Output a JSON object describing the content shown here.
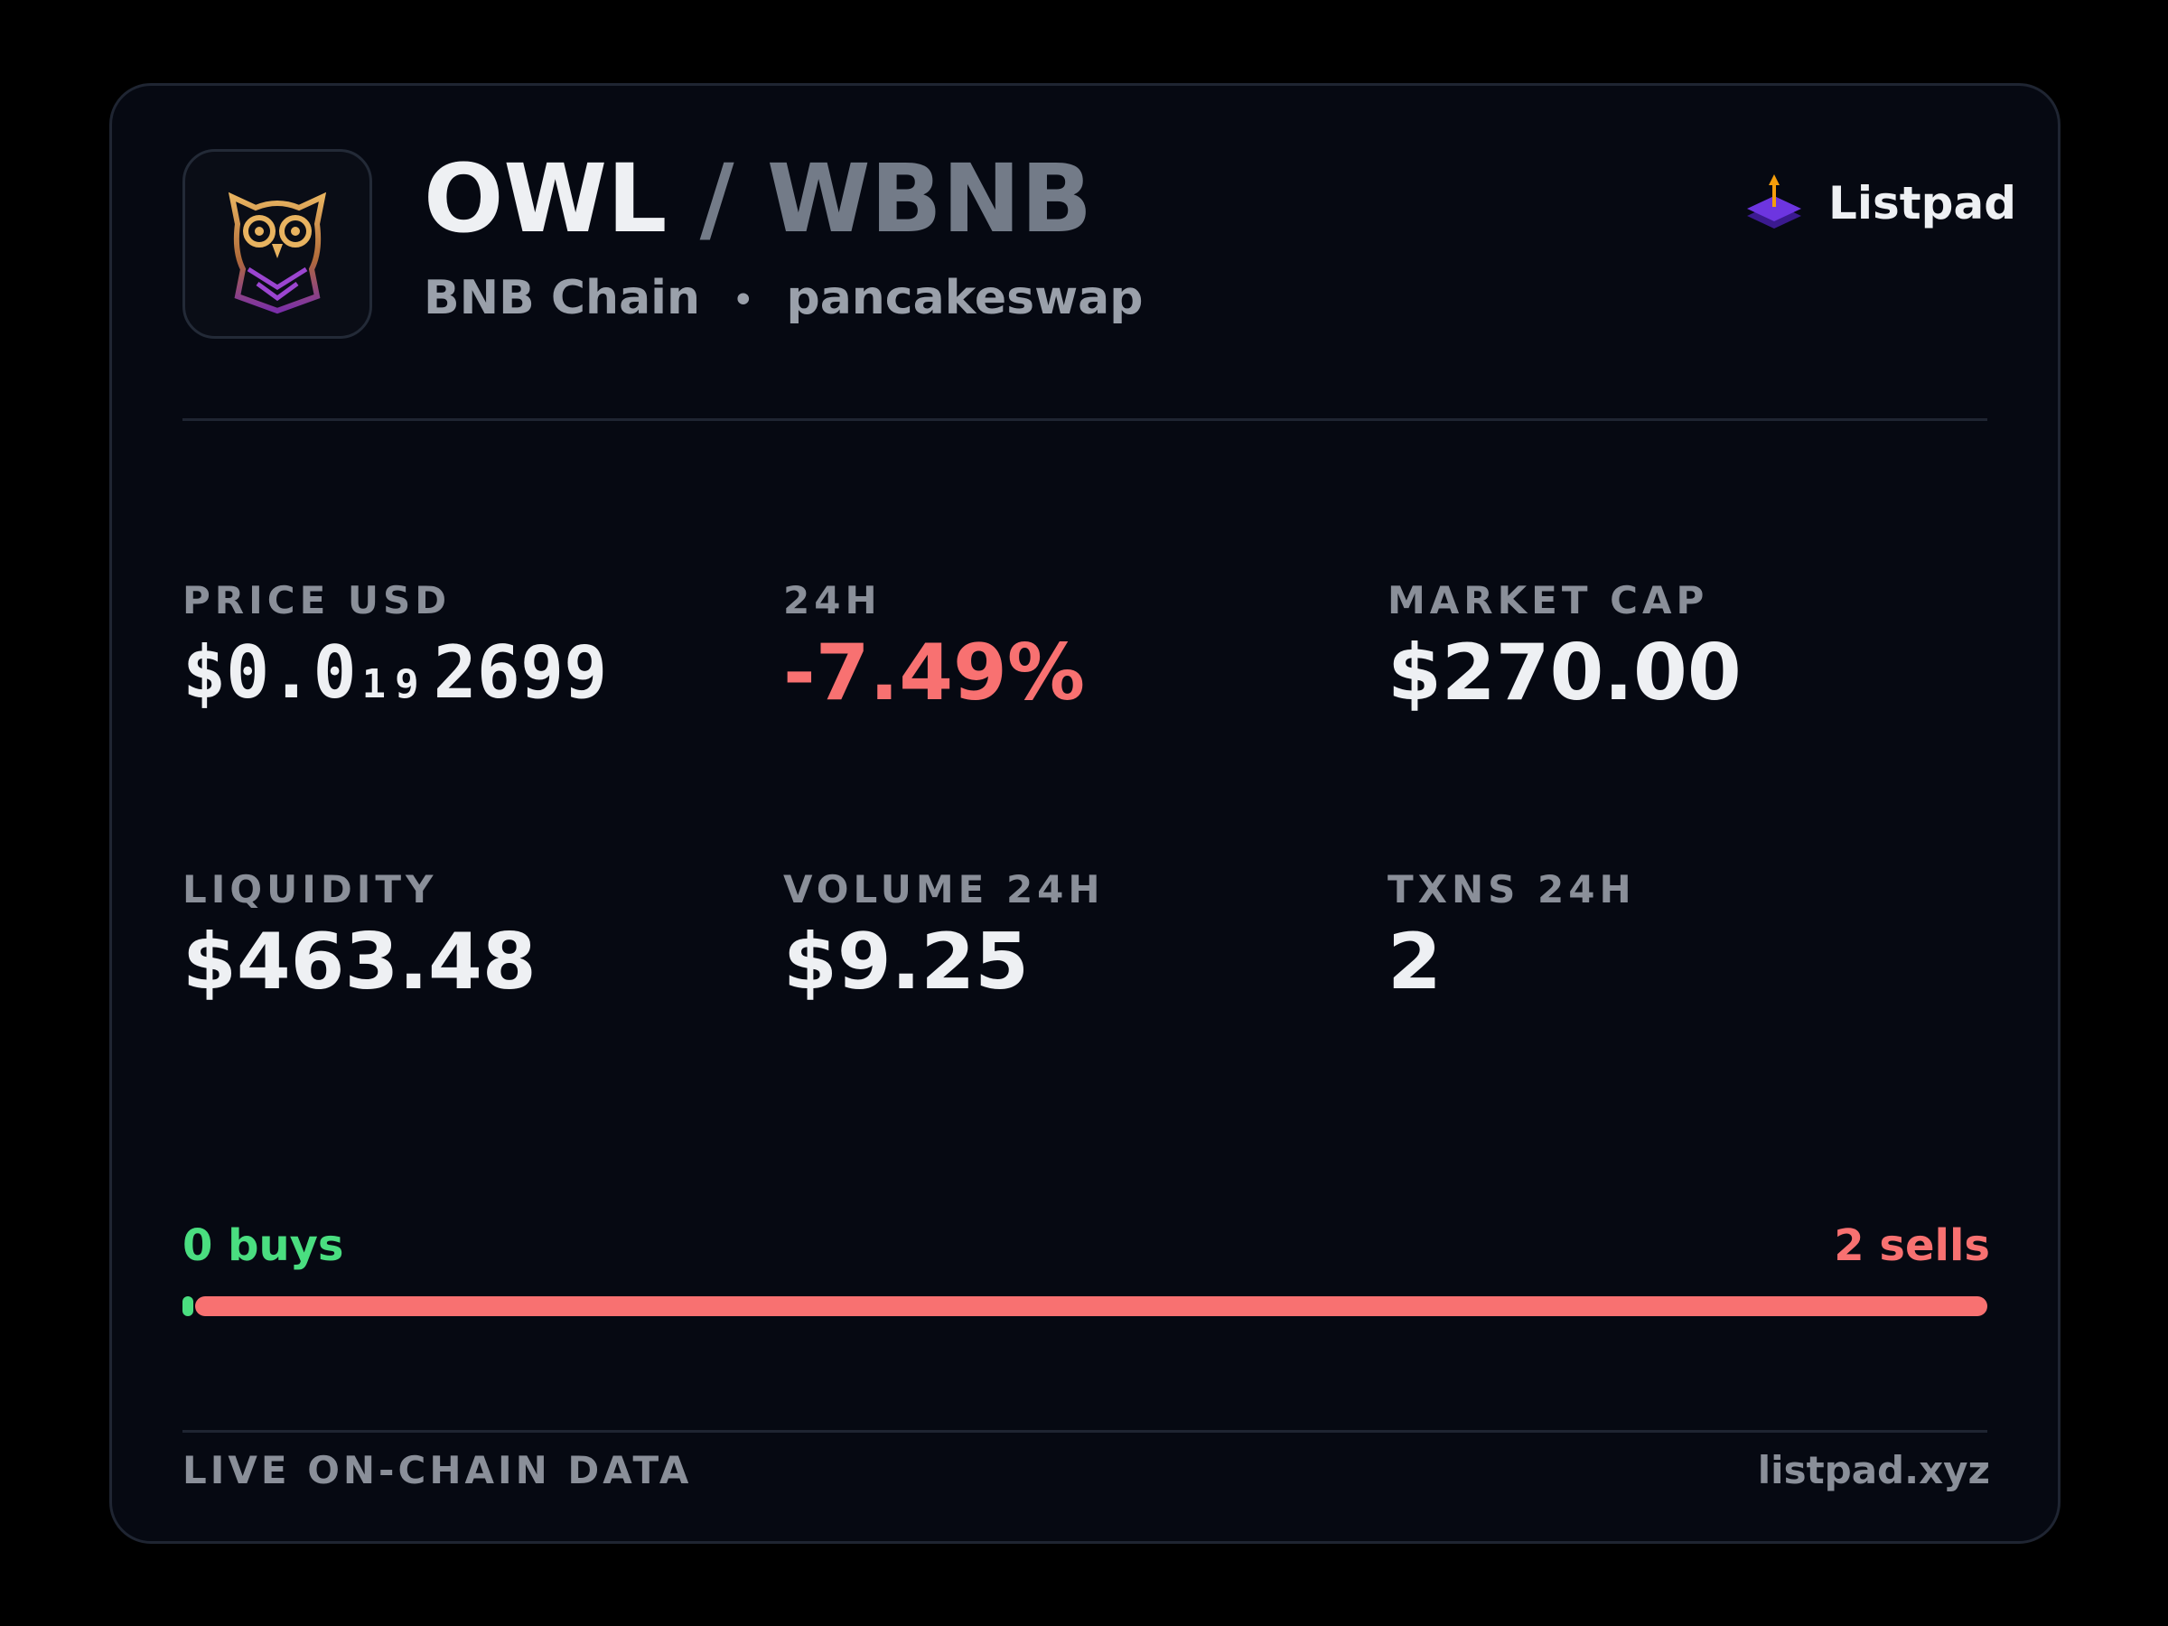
{
  "header": {
    "base": "OWL",
    "separator": "/",
    "quote": "WBNB",
    "chain": "BNB Chain",
    "dot": "•",
    "dex": "pancakeswap",
    "brand": "Listpad"
  },
  "stats": [
    {
      "label": "PRICE USD",
      "value": {
        "prefix": "$0.0",
        "zeros": "19",
        "digits": "2699"
      }
    },
    {
      "label": "24H",
      "value": "-7.49%"
    },
    {
      "label": "MARKET CAP",
      "value": "$270.00"
    },
    {
      "label": "LIQUIDITY",
      "value": "$463.48"
    },
    {
      "label": "VOLUME 24H",
      "value": "$9.25"
    },
    {
      "label": "TXNS 24H",
      "value": "2"
    }
  ],
  "trades": {
    "buys": {
      "count": 0,
      "label": "0 buys"
    },
    "sells": {
      "count": 2,
      "label": "2 sells"
    }
  },
  "footer": {
    "note": "LIVE ON-CHAIN DATA",
    "site": "listpad.xyz"
  }
}
